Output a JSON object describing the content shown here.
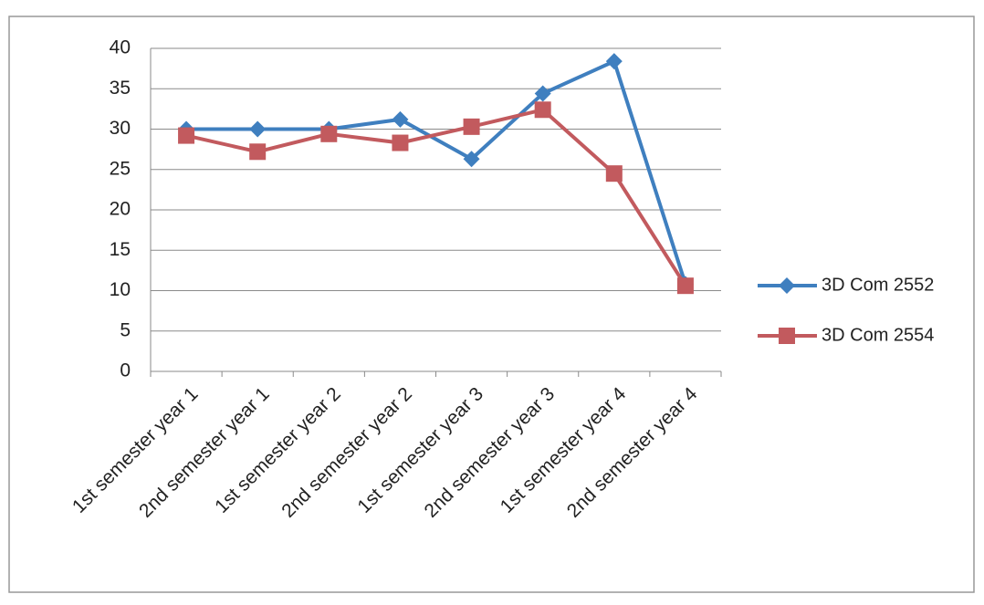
{
  "chart_data": {
    "type": "line",
    "categories": [
      "1st semester year 1",
      "2nd semester year 1",
      "1st semester year 2",
      "2nd semester year 2",
      "1st semester year 3",
      "2nd semester year 3",
      "1st semester year 4",
      "2nd semester year 4"
    ],
    "series": [
      {
        "name": "3D Com 2552",
        "color": "#3f7fbf",
        "marker": "diamond",
        "values": [
          30,
          30,
          30,
          31.2,
          26.3,
          34.4,
          38.4,
          10.8
        ]
      },
      {
        "name": "3D Com 2554",
        "color": "#c25a5e",
        "marker": "square",
        "values": [
          29.2,
          27.2,
          29.4,
          28.3,
          30.3,
          32.4,
          24.5,
          10.6
        ]
      }
    ],
    "ylim": [
      0,
      40
    ],
    "yticks": [
      0,
      5,
      10,
      15,
      20,
      25,
      30,
      35,
      40
    ],
    "grid": true,
    "legend": "right"
  }
}
